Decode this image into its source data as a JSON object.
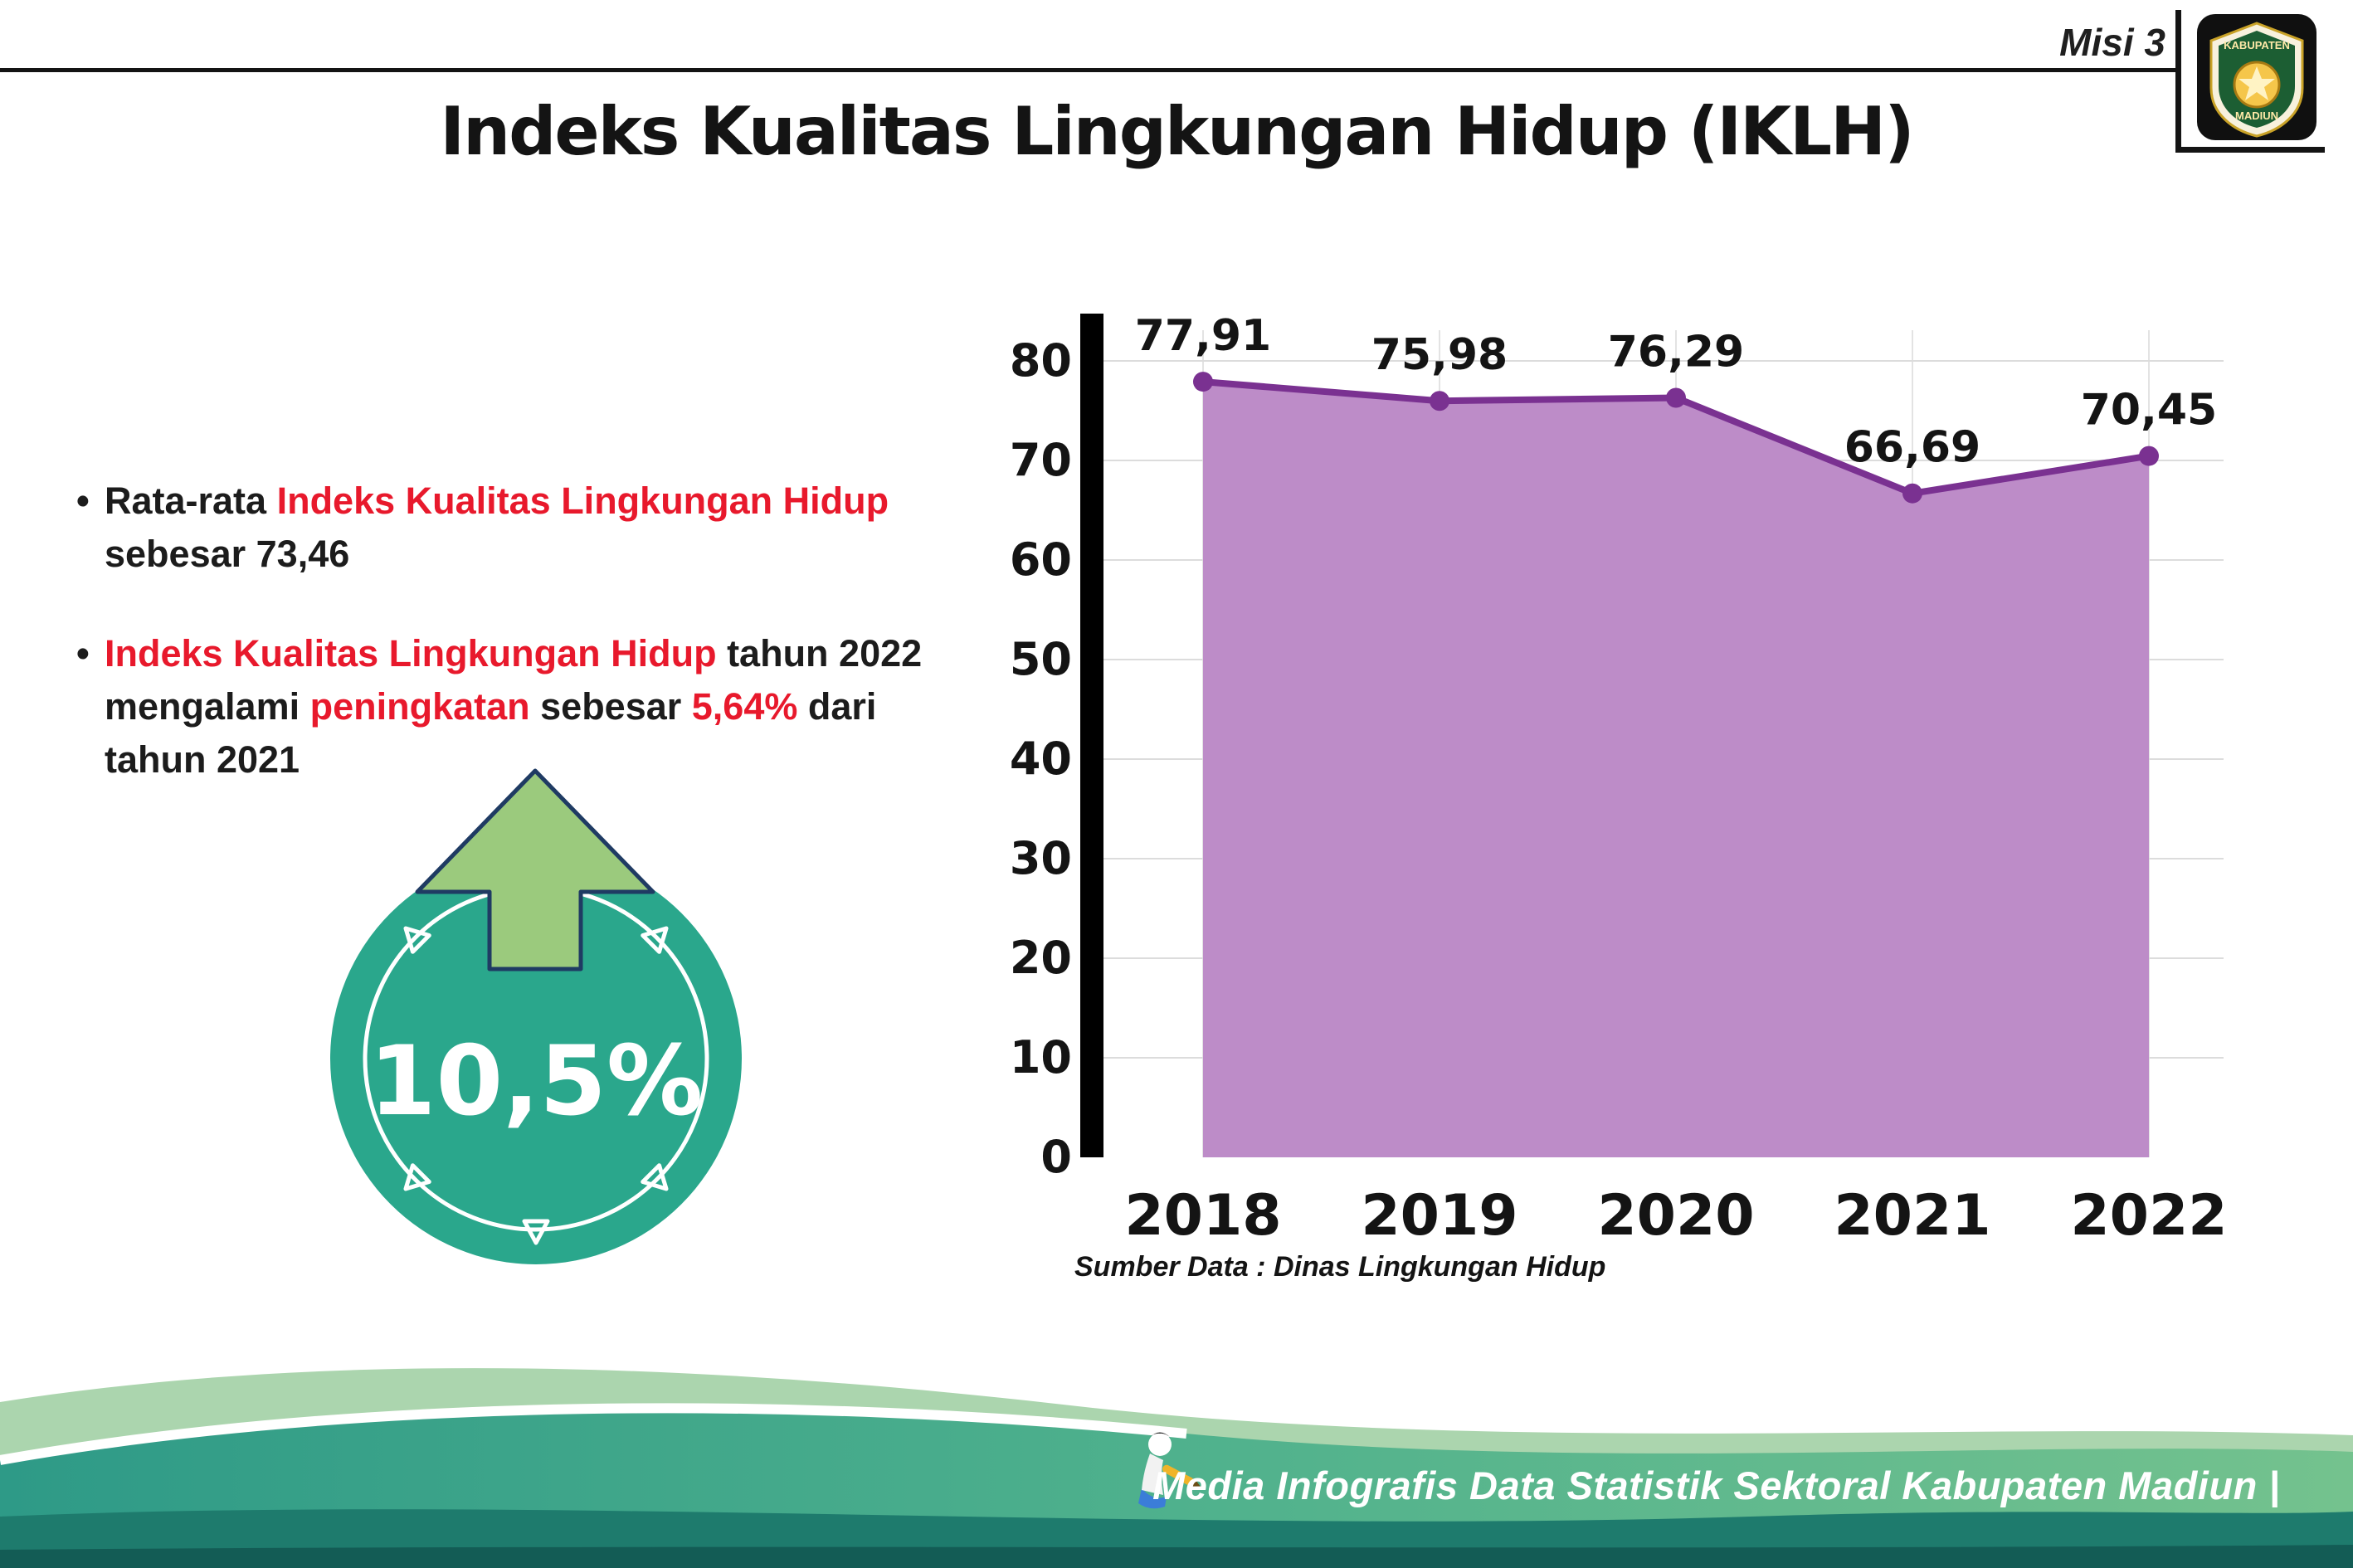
{
  "header": {
    "misi": "Misi 3",
    "title": "Indeks Kualitas Lingkungan Hidup (IKLH)",
    "logo": {
      "top": "KABUPATEN",
      "bottom": "MADIUN"
    }
  },
  "notes": {
    "marker": "•",
    "bullet1": {
      "t1": "Rata-rata ",
      "h1": "Indeks Kualitas Lingkungan Hidup",
      "t2": "sebesar 73,46"
    },
    "bullet2": {
      "h1": "Indeks Kualitas Lingkungan Hidup",
      "t1": " tahun 2022",
      "t2": "mengalami ",
      "h2": "peningkatan",
      "t3": " sebesar ",
      "h3": "5,64%",
      "t4": " dari",
      "t5": "tahun 2021"
    }
  },
  "badge": {
    "value": "10,5%",
    "circle_color": "#2aa78c",
    "arrow_color": "#9bca7d",
    "arrow_outline": "#1f3b63"
  },
  "chart_data": {
    "type": "area",
    "title": "Indeks Kualitas Lingkungan Hidup (IKLH)",
    "x": [
      "2018",
      "2019",
      "2020",
      "2021",
      "2022"
    ],
    "series": [
      {
        "name": "IKLH",
        "values": [
          77.91,
          75.98,
          76.29,
          66.69,
          70.45
        ]
      }
    ],
    "point_labels": [
      "77,91",
      "75,98",
      "76,29",
      "66,69",
      "70,45"
    ],
    "ylim": [
      0,
      80
    ],
    "yticks": [
      0,
      10,
      20,
      30,
      40,
      50,
      60,
      70,
      80
    ],
    "grid": true,
    "legend": false,
    "source": "Sumber Data : Dinas Lingkungan Hidup",
    "colors": {
      "fill": "#bd8cc8",
      "line": "#7a3191",
      "axis": "#000000"
    }
  },
  "footer": {
    "caption": "Media Infografis Data Statistik Sektoral Kabupaten Madiun |"
  }
}
